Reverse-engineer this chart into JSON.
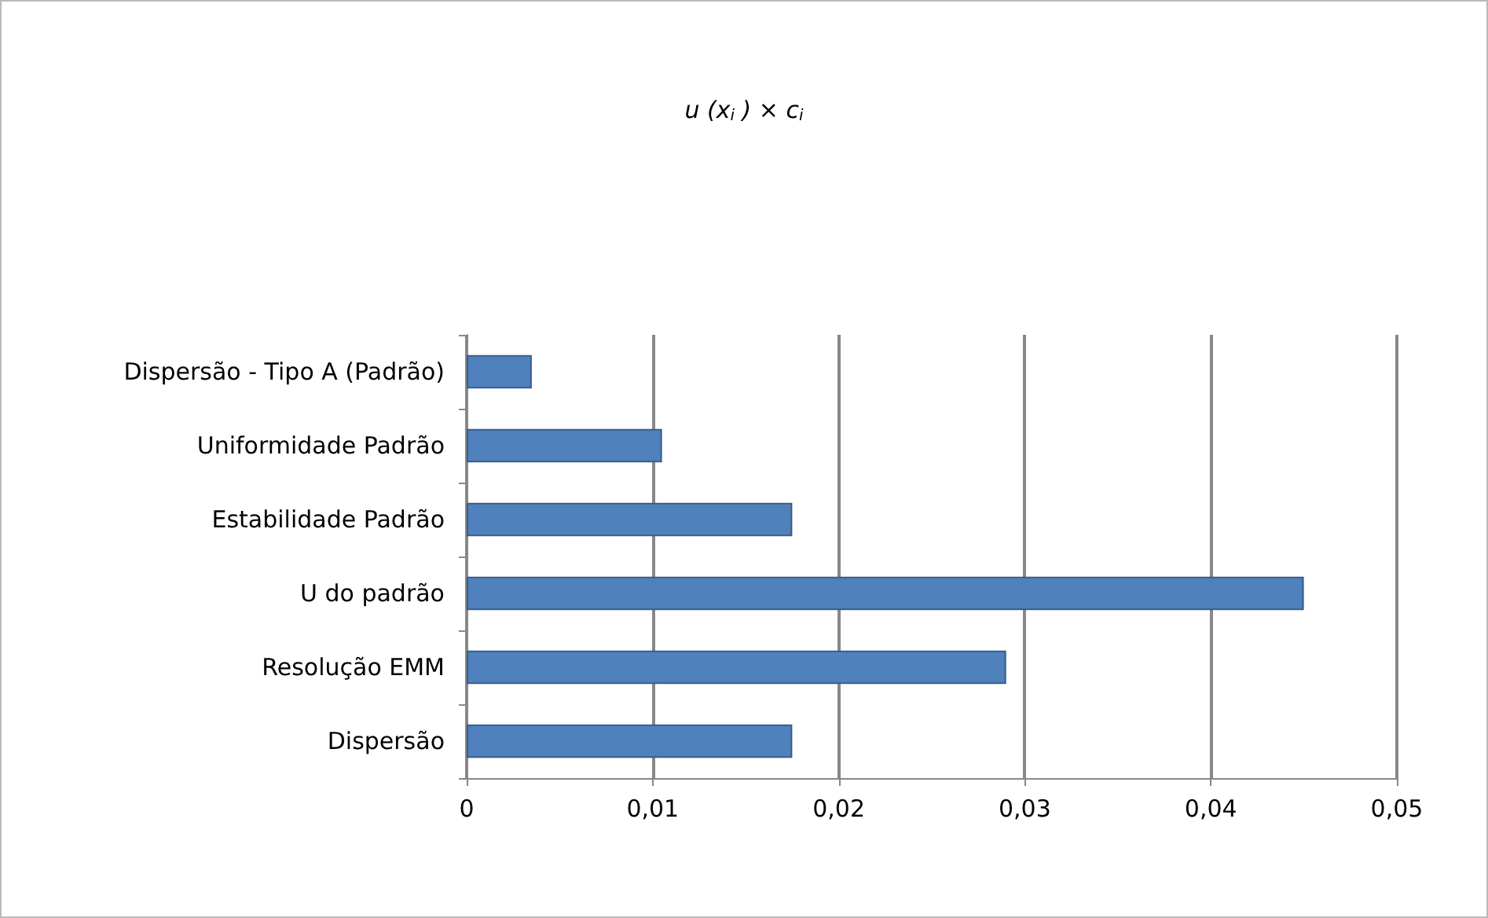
{
  "chart_data": {
    "type": "bar",
    "orientation": "horizontal",
    "title": "u (x$_{i}$ ) × c$_{i}$",
    "categories": [
      "Dispersão - Tipo A (Padrão)",
      "Uniformidade Padrão",
      "Estabilidade Padrão",
      "U do padrão",
      "Resolução EMM",
      "Dispersão"
    ],
    "values": [
      0.0035,
      0.0105,
      0.0175,
      0.045,
      0.029,
      0.0175
    ],
    "color": "#4f81bd",
    "xlim": [
      0,
      0.05
    ],
    "xticks": [
      {
        "value": 0,
        "label": "0"
      },
      {
        "value": 0.01,
        "label": "0,01"
      },
      {
        "value": 0.02,
        "label": "0,02"
      },
      {
        "value": 0.03,
        "label": "0,03"
      },
      {
        "value": 0.04,
        "label": "0,04"
      },
      {
        "value": 0.05,
        "label": "0,05"
      }
    ],
    "grid": "x"
  }
}
